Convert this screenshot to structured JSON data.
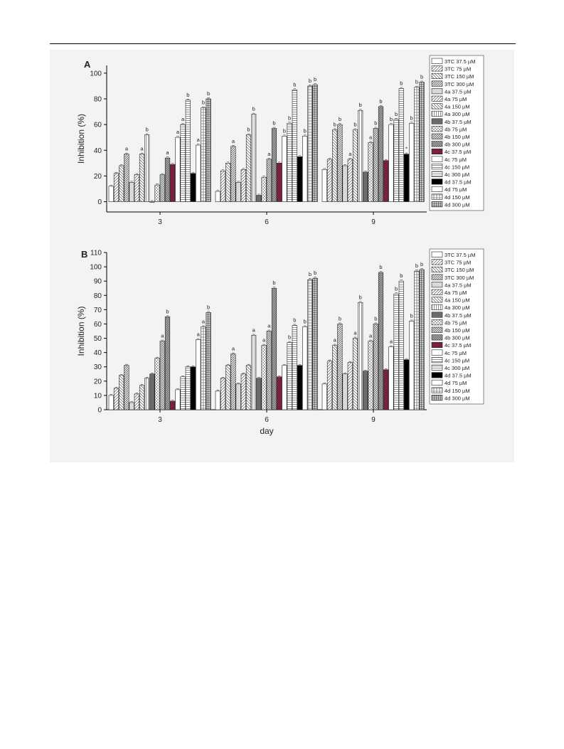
{
  "figure": {
    "xlabel": "day"
  },
  "chart_data": [
    {
      "type": "bar",
      "panel_label": "A",
      "title": "",
      "xlabel": "",
      "ylabel": "Inhibition  (%)",
      "ylim": [
        -8,
        106
      ],
      "yticks": [
        "0",
        "20",
        "40",
        "60",
        "80",
        "100"
      ],
      "categories": [
        "3",
        "6",
        "9"
      ],
      "grid": false,
      "legend_position": "top-right",
      "series": [
        {
          "name": "3TC 37.5 µM",
          "pattern": "white",
          "values": [
            12,
            8,
            25
          ],
          "letters": [
            "",
            "",
            ""
          ]
        },
        {
          "name": "3TC 75 µM",
          "pattern": "diag-l",
          "values": [
            22,
            24,
            33
          ],
          "letters": [
            "",
            "",
            ""
          ]
        },
        {
          "name": "3TC 150 µM",
          "pattern": "diag-r",
          "values": [
            28,
            30,
            56
          ],
          "letters": [
            "",
            "",
            "b"
          ]
        },
        {
          "name": "3TC 300 µM",
          "pattern": "diag-dense",
          "values": [
            37,
            43,
            60
          ],
          "letters": [
            "a",
            "a",
            "b"
          ]
        },
        {
          "name": "4a 37.5 µM",
          "pattern": "lightgray",
          "values": [
            15,
            15,
            28
          ],
          "letters": [
            "",
            "",
            ""
          ]
        },
        {
          "name": "4a 75 µM",
          "pattern": "diag-l",
          "values": [
            21,
            25,
            33
          ],
          "letters": [
            "",
            "",
            "a"
          ]
        },
        {
          "name": "4a 150 µM",
          "pattern": "diag-r",
          "values": [
            37,
            52,
            56
          ],
          "letters": [
            "a",
            "b",
            "b"
          ]
        },
        {
          "name": "4a 300 µM",
          "pattern": "vert",
          "values": [
            52,
            68,
            71
          ],
          "letters": [
            "b",
            "b",
            "b"
          ]
        },
        {
          "name": "4b 37.5 µM",
          "pattern": "darkgray",
          "values": [
            0,
            5,
            23
          ],
          "letters": [
            "",
            "",
            ""
          ]
        },
        {
          "name": "4b 75 µM",
          "pattern": "cross",
          "values": [
            13,
            19,
            46
          ],
          "letters": [
            "",
            "",
            "a"
          ]
        },
        {
          "name": "4b 150 µM",
          "pattern": "cross-dense",
          "values": [
            21,
            33,
            57
          ],
          "letters": [
            "",
            "a",
            "b"
          ]
        },
        {
          "name": "4b 300 µM",
          "pattern": "dots",
          "values": [
            34,
            57,
            74
          ],
          "letters": [
            "a",
            "b",
            "b"
          ]
        },
        {
          "name": "4c 37.5 µM",
          "pattern": "maroon",
          "values": [
            29,
            30,
            32
          ],
          "letters": [
            "",
            "",
            ""
          ]
        },
        {
          "name": "4c 75 µM",
          "pattern": "white",
          "values": [
            50,
            51,
            60
          ],
          "letters": [
            "a",
            "b",
            "b"
          ]
        },
        {
          "name": "4c 150 µM",
          "pattern": "horiz",
          "values": [
            60,
            61,
            64
          ],
          "letters": [
            "a",
            "b",
            "b"
          ]
        },
        {
          "name": "4c 300 µM",
          "pattern": "horiz",
          "values": [
            79,
            87,
            88
          ],
          "letters": [
            "b",
            "b",
            "b"
          ]
        },
        {
          "name": "4d 37.5 µM",
          "pattern": "black",
          "values": [
            22,
            35,
            37
          ],
          "letters": [
            "",
            "",
            "*"
          ]
        },
        {
          "name": "4d 75 µM",
          "pattern": "white",
          "values": [
            44,
            51,
            61
          ],
          "letters": [
            "a",
            "b",
            "b"
          ]
        },
        {
          "name": "4d 150 µM",
          "pattern": "grid",
          "values": [
            73,
            90,
            89
          ],
          "letters": [
            "b",
            "b",
            "b"
          ]
        },
        {
          "name": "4d 300 µM",
          "pattern": "grid-dense",
          "values": [
            80,
            91,
            93
          ],
          "letters": [
            "b",
            "b",
            "b"
          ]
        }
      ]
    },
    {
      "type": "bar",
      "panel_label": "B",
      "title": "",
      "xlabel": "day",
      "ylabel": "Inhibition  (%)",
      "ylim": [
        0,
        110
      ],
      "yticks": [
        "0",
        "10",
        "20",
        "30",
        "40",
        "50",
        "60",
        "70",
        "80",
        "90",
        "100",
        "110"
      ],
      "categories": [
        "3",
        "6",
        "9"
      ],
      "grid": false,
      "legend_position": "top-right",
      "series": [
        {
          "name": "3TC 37.5 µM",
          "pattern": "white",
          "values": [
            10,
            13,
            18
          ],
          "letters": [
            "",
            "",
            ""
          ]
        },
        {
          "name": "3TC 75 µM",
          "pattern": "diag-l",
          "values": [
            15,
            22,
            34
          ],
          "letters": [
            "",
            "",
            ""
          ]
        },
        {
          "name": "3TC 150 µM",
          "pattern": "diag-r",
          "values": [
            24,
            31,
            45
          ],
          "letters": [
            "",
            "",
            "a"
          ]
        },
        {
          "name": "3TC 300 µM",
          "pattern": "diag-dense",
          "values": [
            31,
            39,
            60
          ],
          "letters": [
            "",
            "a",
            "b"
          ]
        },
        {
          "name": "4a 37.5 µM",
          "pattern": "lightgray",
          "values": [
            5,
            18,
            25
          ],
          "letters": [
            "",
            "",
            ""
          ]
        },
        {
          "name": "4a 75 µM",
          "pattern": "diag-l",
          "values": [
            11,
            25,
            33
          ],
          "letters": [
            "",
            "",
            ""
          ]
        },
        {
          "name": "4a 150 µM",
          "pattern": "diag-r",
          "values": [
            17,
            31,
            50
          ],
          "letters": [
            "",
            "",
            "a"
          ]
        },
        {
          "name": "4a 300 µM",
          "pattern": "vert",
          "values": [
            22,
            52,
            75
          ],
          "letters": [
            "",
            "a",
            "b"
          ]
        },
        {
          "name": "4b 37.5 µM",
          "pattern": "darkgray",
          "values": [
            25,
            22,
            27
          ],
          "letters": [
            "",
            "",
            ""
          ]
        },
        {
          "name": "4b 75 µM",
          "pattern": "cross",
          "values": [
            36,
            45,
            48
          ],
          "letters": [
            "",
            "a",
            "a"
          ]
        },
        {
          "name": "4b 150 µM",
          "pattern": "cross-dense",
          "values": [
            48,
            55,
            60
          ],
          "letters": [
            "a",
            "a",
            "b"
          ]
        },
        {
          "name": "4b 300 µM",
          "pattern": "dots",
          "values": [
            65,
            85,
            96
          ],
          "letters": [
            "b",
            "b",
            "b"
          ]
        },
        {
          "name": "4c 37.5 µM",
          "pattern": "maroon",
          "values": [
            6,
            23,
            28
          ],
          "letters": [
            "",
            "",
            ""
          ]
        },
        {
          "name": "4c 75 µM",
          "pattern": "white",
          "values": [
            14,
            31,
            44
          ],
          "letters": [
            "",
            "",
            "a"
          ]
        },
        {
          "name": "4c 150 µM",
          "pattern": "horiz",
          "values": [
            23,
            47,
            81
          ],
          "letters": [
            "",
            "b",
            "b"
          ]
        },
        {
          "name": "4c 300 µM",
          "pattern": "horiz",
          "values": [
            30,
            59,
            90
          ],
          "letters": [
            "",
            "b",
            "b"
          ]
        },
        {
          "name": "4d 37.5 µM",
          "pattern": "black",
          "values": [
            30,
            31,
            35
          ],
          "letters": [
            "",
            "",
            ""
          ]
        },
        {
          "name": "4d 75 µM",
          "pattern": "white",
          "values": [
            49,
            58,
            62
          ],
          "letters": [
            "a",
            "b",
            "b"
          ]
        },
        {
          "name": "4d 150 µM",
          "pattern": "grid",
          "values": [
            58,
            91,
            97
          ],
          "letters": [
            "a",
            "b",
            "b"
          ]
        },
        {
          "name": "4d 300 µM",
          "pattern": "grid-dense",
          "values": [
            68,
            92,
            98
          ],
          "letters": [
            "b",
            "b",
            "b"
          ]
        }
      ]
    }
  ]
}
